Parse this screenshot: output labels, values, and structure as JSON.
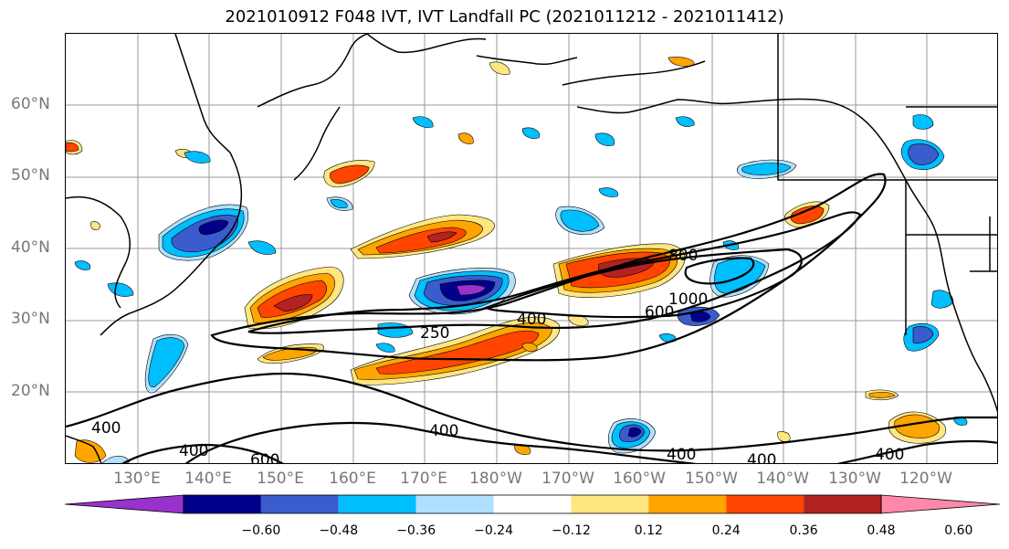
{
  "title": "2021010912 F048 IVT, IVT Landfall PC (2021011212 - 2021011412)",
  "lat_labels": [
    "60°N",
    "50°N",
    "40°N",
    "30°N",
    "20°N"
  ],
  "lon_labels": [
    "130°E",
    "140°E",
    "150°E",
    "160°E",
    "170°E",
    "180°W",
    "170°W",
    "160°W",
    "150°W",
    "140°W",
    "130°W",
    "120°W"
  ],
  "contour_labels": [
    "250",
    "400",
    "600",
    "800",
    "1000",
    "400",
    "400",
    "400",
    "600",
    "400",
    "400",
    "400"
  ],
  "colorbar": {
    "colors": [
      "#9932cc",
      "#00008b",
      "#3a5ccc",
      "#00bfff",
      "#b0e0ff",
      "#ffffff",
      "#ffe680",
      "#ffa500",
      "#ff4500",
      "#b22222",
      "#ff88aa"
    ],
    "ticks": [
      "−0.60",
      "−0.48",
      "−0.36",
      "−0.24",
      "−0.12",
      "0.12",
      "0.24",
      "0.36",
      "0.48",
      "0.60"
    ]
  }
}
